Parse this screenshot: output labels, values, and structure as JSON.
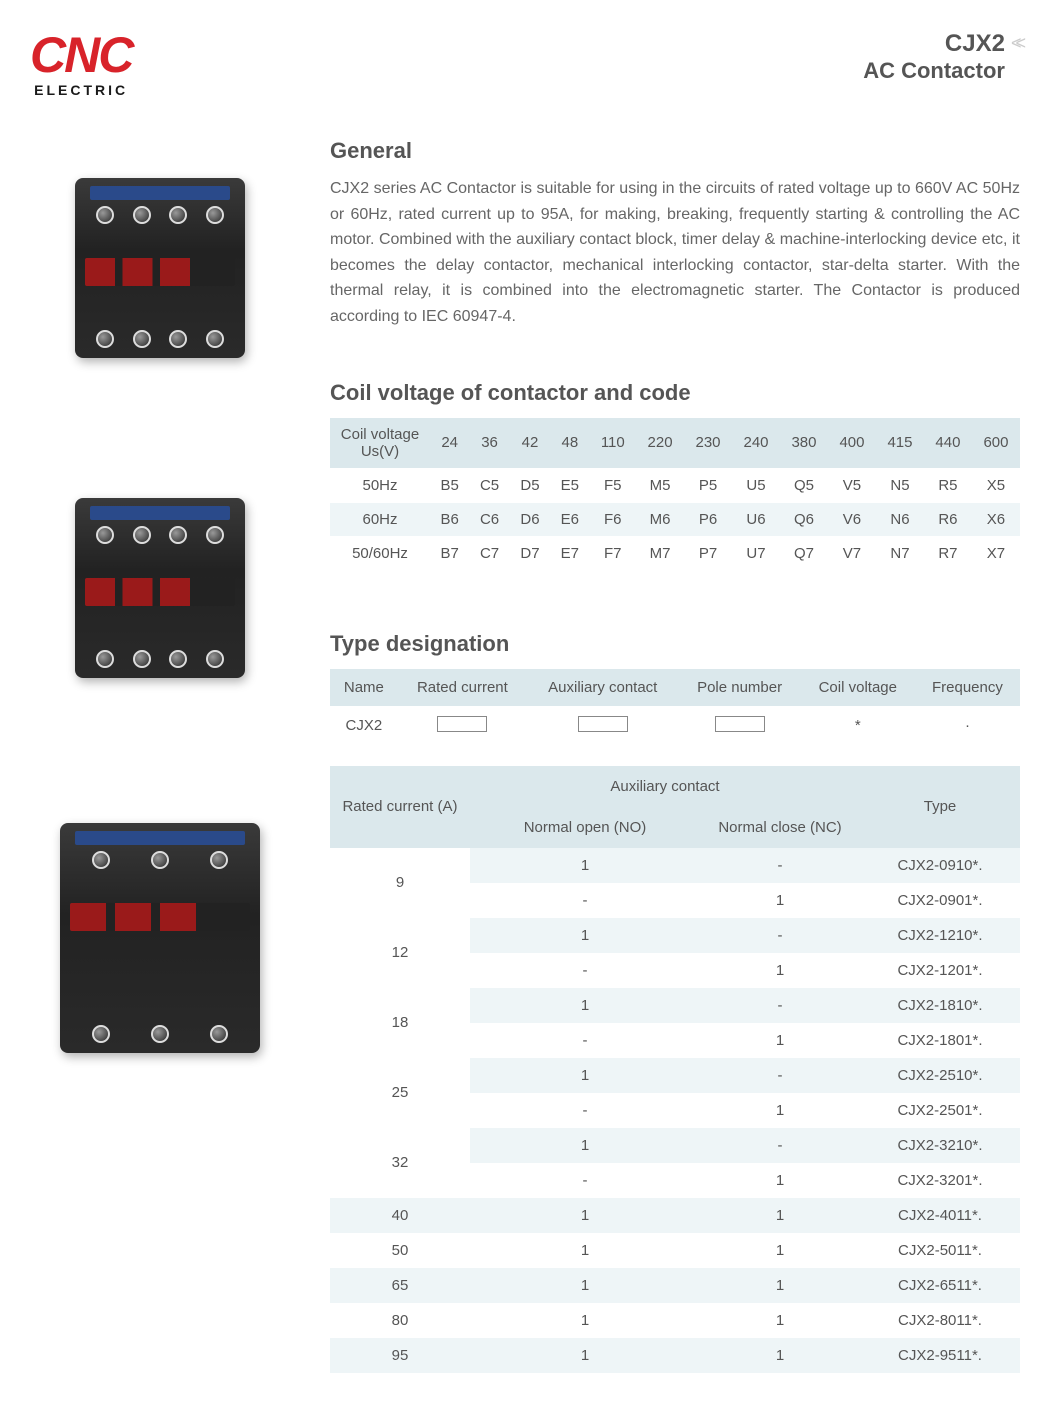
{
  "logo": {
    "main": "CNC",
    "sub": "ELECTRIC"
  },
  "title": {
    "line1": "CJX2",
    "line2": "AC Contactor"
  },
  "general": {
    "heading": "General",
    "body": "CJX2 series AC Contactor is suitable for using in the circuits of rated voltage up to 660V AC 50Hz or 60Hz, rated current up to 95A, for making, breaking, frequently starting & controlling the AC motor. Combined with the auxiliary contact block, timer delay & machine-interlocking device etc, it becomes the delay contactor, mechanical interlocking contactor, star-delta starter. With the thermal relay, it is combined into the electromagnetic starter. The Contactor is produced  according to IEC 60947-4."
  },
  "coil": {
    "heading": "Coil voltage of contactor and code",
    "header_label": "Coil voltage Us(V)",
    "voltages": [
      "24",
      "36",
      "42",
      "48",
      "110",
      "220",
      "230",
      "240",
      "380",
      "400",
      "415",
      "440",
      "600"
    ],
    "rows": [
      {
        "label": "50Hz",
        "codes": [
          "B5",
          "C5",
          "D5",
          "E5",
          "F5",
          "M5",
          "P5",
          "U5",
          "Q5",
          "V5",
          "N5",
          "R5",
          "X5"
        ]
      },
      {
        "label": "60Hz",
        "codes": [
          "B6",
          "C6",
          "D6",
          "E6",
          "F6",
          "M6",
          "P6",
          "U6",
          "Q6",
          "V6",
          "N6",
          "R6",
          "X6"
        ]
      },
      {
        "label": "50/60Hz",
        "codes": [
          "B7",
          "C7",
          "D7",
          "E7",
          "F7",
          "M7",
          "P7",
          "U7",
          "Q7",
          "V7",
          "N7",
          "R7",
          "X7"
        ]
      }
    ],
    "colors": {
      "header_bg": "#dbe8ec",
      "alt_bg": "#eef5f7"
    }
  },
  "designation": {
    "heading": "Type designation",
    "columns": [
      "Name",
      "Rated current",
      "Auxiliary contact",
      "Pole number",
      "Coil voltage",
      "Frequency"
    ],
    "row": {
      "name": "CJX2",
      "coil": "*",
      "freq": "·"
    }
  },
  "spec": {
    "top_headers": {
      "rated": "Rated current (A)",
      "aux": "Auxiliary contact",
      "type": "Type"
    },
    "sub_headers": {
      "no": "Normal open (NO)",
      "nc": "Normal close (NC)"
    },
    "groups": [
      {
        "rated": "9",
        "rows": [
          {
            "no": "1",
            "nc": "-",
            "type": "CJX2-0910*."
          },
          {
            "no": "-",
            "nc": "1",
            "type": "CJX2-0901*."
          }
        ]
      },
      {
        "rated": "12",
        "rows": [
          {
            "no": "1",
            "nc": "-",
            "type": "CJX2-1210*."
          },
          {
            "no": "-",
            "nc": "1",
            "type": "CJX2-1201*."
          }
        ]
      },
      {
        "rated": "18",
        "rows": [
          {
            "no": "1",
            "nc": "-",
            "type": "CJX2-1810*."
          },
          {
            "no": "-",
            "nc": "1",
            "type": "CJX2-1801*."
          }
        ]
      },
      {
        "rated": "25",
        "rows": [
          {
            "no": "1",
            "nc": "-",
            "type": "CJX2-2510*."
          },
          {
            "no": "-",
            "nc": "1",
            "type": "CJX2-2501*."
          }
        ]
      },
      {
        "rated": "32",
        "rows": [
          {
            "no": "1",
            "nc": "-",
            "type": "CJX2-3210*."
          },
          {
            "no": "-",
            "nc": "1",
            "type": "CJX2-3201*."
          }
        ]
      },
      {
        "rated": "40",
        "rows": [
          {
            "no": "1",
            "nc": "1",
            "type": "CJX2-4011*."
          }
        ]
      },
      {
        "rated": "50",
        "rows": [
          {
            "no": "1",
            "nc": "1",
            "type": "CJX2-5011*."
          }
        ]
      },
      {
        "rated": "65",
        "rows": [
          {
            "no": "1",
            "nc": "1",
            "type": "CJX2-6511*."
          }
        ]
      },
      {
        "rated": "80",
        "rows": [
          {
            "no": "1",
            "nc": "1",
            "type": "CJX2-8011*."
          }
        ]
      },
      {
        "rated": "95",
        "rows": [
          {
            "no": "1",
            "nc": "1",
            "type": "CJX2-9511*."
          }
        ]
      }
    ]
  },
  "style": {
    "brand_color": "#d8232a",
    "heading_color": "#555555",
    "text_color": "#666666",
    "table_header_bg": "#dbe8ec",
    "table_alt_bg": "#eef5f7",
    "body_fontsize": 16,
    "heading_fontsize": 22
  }
}
